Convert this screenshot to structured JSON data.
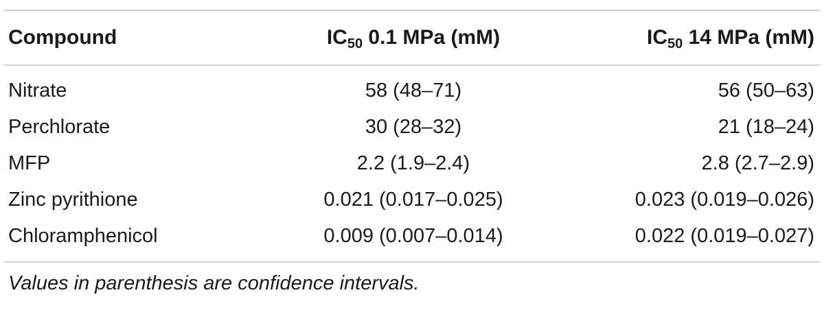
{
  "table": {
    "headers": {
      "compound": "Compound",
      "col2_prefix": "IC",
      "col2_sub": "50",
      "col2_suffix": " 0.1 MPa (mM)",
      "col3_prefix": "IC",
      "col3_sub": "50",
      "col3_suffix": " 14 MPa (mM)"
    },
    "rows": [
      {
        "compound": "Nitrate",
        "ic50_01": "58 (48–71)",
        "ic50_14": "56 (50–63)"
      },
      {
        "compound": "Perchlorate",
        "ic50_01": "30 (28–32)",
        "ic50_14": "21 (18–24)"
      },
      {
        "compound": "MFP",
        "ic50_01": "2.2 (1.9–2.4)",
        "ic50_14": "2.8 (2.7–2.9)"
      },
      {
        "compound": "Zinc pyrithione",
        "ic50_01": "0.021 (0.017–0.025)",
        "ic50_14": "0.023 (0.019–0.026)"
      },
      {
        "compound": "Chloramphenicol",
        "ic50_01": "0.009 (0.007–0.014)",
        "ic50_14": "0.022 (0.019–0.027)"
      }
    ],
    "footnote": "Values in parenthesis are confidence intervals."
  },
  "colors": {
    "rule": "#cfcfcf",
    "text": "#1a1a1a"
  }
}
